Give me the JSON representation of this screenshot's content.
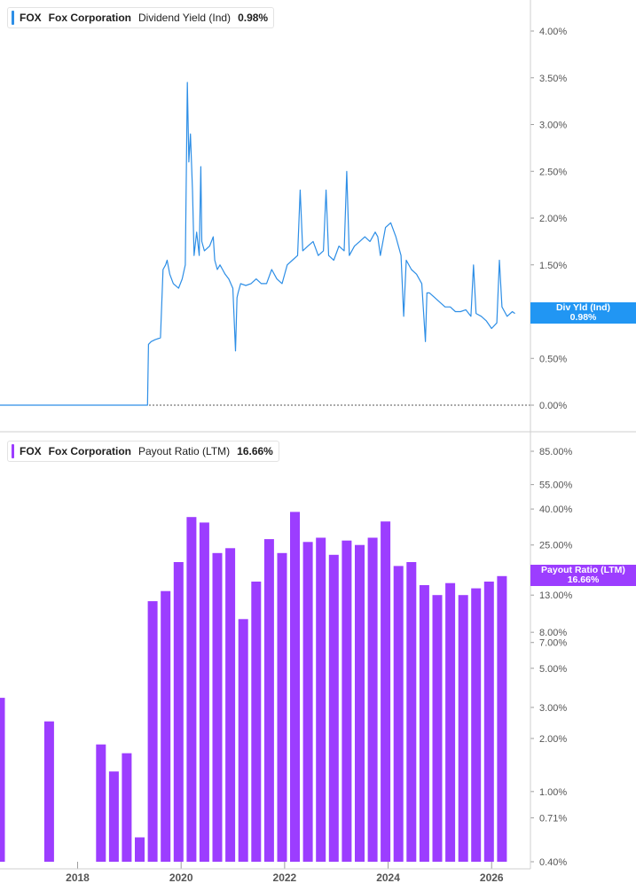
{
  "colors": {
    "yield": "#2d8ee6",
    "yield_tag": "#2196f3",
    "payout": "#9c3dff",
    "axis_text": "#555555",
    "grid": "#bdbdbd"
  },
  "top_panel": {
    "legend": {
      "symbol": "FOX",
      "company": "Fox Corporation",
      "metric": "Dividend Yield (Ind)",
      "value": "0.98%"
    },
    "tag": {
      "label": "Div Yld (Ind)",
      "value": "0.98%"
    }
  },
  "bottom_panel": {
    "legend": {
      "symbol": "FOX",
      "company": "Fox Corporation",
      "metric": "Payout Ratio (LTM)",
      "value": "16.66%"
    },
    "tag": {
      "label": "Payout Ratio (LTM)",
      "value": "16.66%"
    }
  },
  "x_axis_labels": [
    "2018",
    "2020",
    "2022",
    "2024",
    "2026"
  ],
  "chart_data": [
    {
      "type": "line",
      "title": "Dividend Yield (Ind)",
      "y_scale": "linear",
      "ylim": [
        0,
        4.3
      ],
      "yticks": [
        "4.00%",
        "3.50%",
        "3.00%",
        "2.50%",
        "2.00%",
        "1.50%",
        "0.50%",
        "0.00%"
      ],
      "ytick_values": [
        4.0,
        3.5,
        3.0,
        2.5,
        2.0,
        1.5,
        0.5,
        0.0
      ],
      "xlim": [
        2016.5,
        2026.75
      ],
      "zero_line": "dotted",
      "series": [
        {
          "name": "Div Yld (Ind)",
          "x": [
            2016.5,
            2019.35,
            2019.37,
            2019.42,
            2019.5,
            2019.6,
            2019.65,
            2019.7,
            2019.73,
            2019.78,
            2019.85,
            2019.95,
            2020.02,
            2020.08,
            2020.12,
            2020.15,
            2020.18,
            2020.22,
            2020.25,
            2020.3,
            2020.35,
            2020.38,
            2020.4,
            2020.45,
            2020.55,
            2020.62,
            2020.65,
            2020.7,
            2020.75,
            2020.8,
            2020.85,
            2020.92,
            2021.0,
            2021.05,
            2021.08,
            2021.1,
            2021.15,
            2021.25,
            2021.35,
            2021.45,
            2021.55,
            2021.65,
            2021.75,
            2021.85,
            2021.95,
            2022.05,
            2022.15,
            2022.25,
            2022.3,
            2022.35,
            2022.45,
            2022.55,
            2022.65,
            2022.75,
            2022.8,
            2022.85,
            2022.95,
            2023.05,
            2023.15,
            2023.2,
            2023.25,
            2023.35,
            2023.45,
            2023.55,
            2023.65,
            2023.75,
            2023.8,
            2023.85,
            2023.95,
            2024.05,
            2024.15,
            2024.25,
            2024.3,
            2024.35,
            2024.45,
            2024.55,
            2024.65,
            2024.72,
            2024.75,
            2024.8,
            2024.9,
            2025.0,
            2025.1,
            2025.2,
            2025.3,
            2025.4,
            2025.5,
            2025.6,
            2025.65,
            2025.7,
            2025.8,
            2025.9,
            2026.0,
            2026.1,
            2026.15,
            2026.2,
            2026.25,
            2026.3,
            2026.4,
            2026.45
          ],
          "y": [
            0.0,
            0.0,
            0.65,
            0.68,
            0.7,
            0.72,
            1.45,
            1.5,
            1.55,
            1.4,
            1.3,
            1.25,
            1.35,
            1.5,
            3.45,
            2.6,
            2.9,
            2.3,
            1.6,
            1.85,
            1.6,
            2.55,
            1.75,
            1.65,
            1.7,
            1.8,
            1.55,
            1.45,
            1.5,
            1.45,
            1.4,
            1.35,
            1.25,
            0.58,
            1.15,
            1.2,
            1.3,
            1.28,
            1.3,
            1.35,
            1.3,
            1.3,
            1.45,
            1.35,
            1.3,
            1.5,
            1.55,
            1.6,
            2.3,
            1.65,
            1.7,
            1.75,
            1.6,
            1.65,
            2.3,
            1.6,
            1.55,
            1.7,
            1.65,
            2.5,
            1.6,
            1.7,
            1.75,
            1.8,
            1.75,
            1.85,
            1.8,
            1.6,
            1.9,
            1.95,
            1.8,
            1.6,
            0.95,
            1.55,
            1.45,
            1.4,
            1.3,
            0.68,
            1.2,
            1.2,
            1.15,
            1.1,
            1.05,
            1.05,
            1.0,
            1.0,
            1.02,
            0.95,
            1.5,
            0.98,
            0.95,
            0.9,
            0.82,
            0.88,
            1.55,
            1.05,
            1.0,
            0.95,
            1.0,
            0.98
          ]
        }
      ]
    },
    {
      "type": "bar",
      "title": "Payout Ratio (LTM)",
      "y_scale": "log",
      "ylim": [
        0.4,
        100
      ],
      "yticks": [
        "85.00%",
        "55.00%",
        "40.00%",
        "25.00%",
        "13.00%",
        "8.00%",
        "7.00%",
        "5.00%",
        "3.00%",
        "2.00%",
        "1.00%",
        "0.71%",
        "0.40%"
      ],
      "ytick_values": [
        85,
        55,
        40,
        25,
        13,
        8,
        7,
        5,
        3,
        2,
        1,
        0.71,
        0.4
      ],
      "xlim": [
        2016.5,
        2026.75
      ],
      "series": [
        {
          "name": "Payout Ratio (LTM)",
          "x": [
            2016.5,
            2017.45,
            2018.45,
            2018.7,
            2018.95,
            2019.2,
            2019.45,
            2019.7,
            2019.95,
            2020.2,
            2020.45,
            2020.7,
            2020.95,
            2021.2,
            2021.45,
            2021.7,
            2021.95,
            2022.2,
            2022.45,
            2022.7,
            2022.95,
            2023.2,
            2023.45,
            2023.7,
            2023.95,
            2024.2,
            2024.45,
            2024.7,
            2024.95,
            2025.2,
            2025.45,
            2025.7,
            2025.95,
            2026.2
          ],
          "y": [
            3.4,
            2.5,
            1.85,
            1.3,
            1.65,
            0.55,
            12.0,
            13.7,
            20.0,
            36.0,
            33.5,
            22.5,
            24.0,
            9.5,
            15.5,
            27.0,
            22.5,
            38.5,
            26.0,
            27.5,
            22.0,
            26.5,
            25.0,
            27.5,
            34.0,
            19.0,
            20.0,
            14.8,
            13.0,
            15.2,
            13.0,
            14.2,
            15.5,
            16.66
          ]
        }
      ]
    }
  ]
}
